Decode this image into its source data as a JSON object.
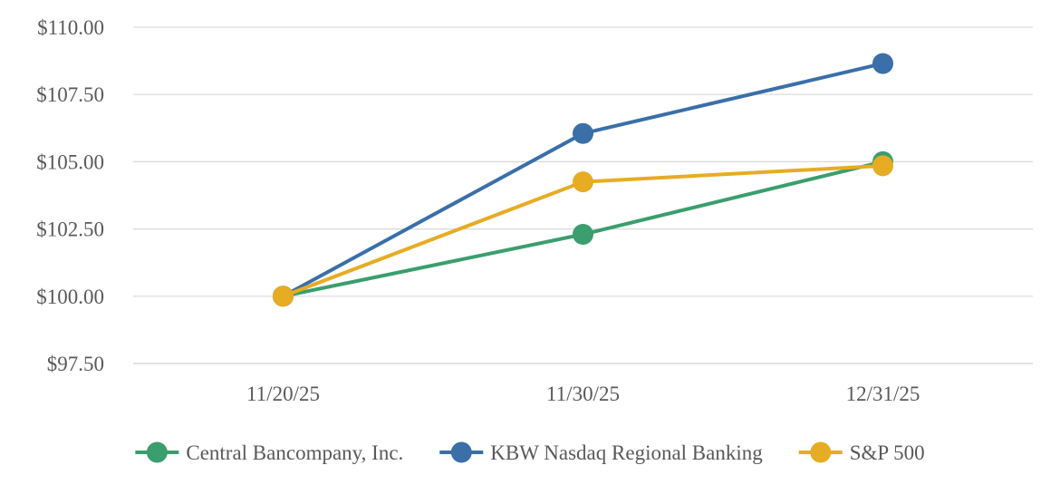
{
  "chart_data": {
    "type": "line",
    "title": "",
    "xlabel": "",
    "ylabel": "",
    "x": [
      "11/20/25",
      "11/30/25",
      "12/31/25"
    ],
    "ylim": [
      97.5,
      110.0
    ],
    "yticks": [
      97.5,
      100.0,
      102.5,
      105.0,
      107.5,
      110.0
    ],
    "ytick_labels": [
      "$97.50",
      "$100.00",
      "$102.50",
      "$105.00",
      "$107.50",
      "$110.00"
    ],
    "grid": "horizontal",
    "legend_position": "bottom",
    "series": [
      {
        "name": "Central Bancompany, Inc.",
        "color": "#3a9e6e",
        "values": [
          100.0,
          102.3,
          105.0
        ]
      },
      {
        "name": "KBW Nasdaq Regional Banking",
        "color": "#3a6fa8",
        "values": [
          100.0,
          106.05,
          108.65
        ]
      },
      {
        "name": "S&P 500",
        "color": "#e6ac24",
        "values": [
          100.0,
          104.25,
          104.85
        ]
      }
    ]
  }
}
